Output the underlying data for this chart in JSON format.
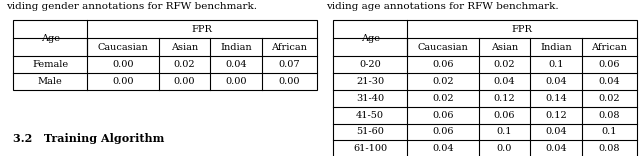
{
  "left_caption": "viding gender annotations for RFW benchmark.",
  "right_caption": "viding age annotations for RFW benchmark.",
  "left_table": {
    "rows": [
      [
        "Female",
        "0.00",
        "0.02",
        "0.04",
        "0.07"
      ],
      [
        "Male",
        "0.00",
        "0.00",
        "0.00",
        "0.00"
      ]
    ]
  },
  "right_table": {
    "rows": [
      [
        "0-20",
        "0.06",
        "0.02",
        "0.1",
        "0.06"
      ],
      [
        "21-30",
        "0.02",
        "0.04",
        "0.04",
        "0.04"
      ],
      [
        "31-40",
        "0.02",
        "0.12",
        "0.14",
        "0.02"
      ],
      [
        "41-50",
        "0.06",
        "0.06",
        "0.12",
        "0.08"
      ],
      [
        "51-60",
        "0.06",
        "0.1",
        "0.04",
        "0.1"
      ],
      [
        "61-100",
        "0.04",
        "0.0",
        "0.04",
        "0.08"
      ]
    ]
  },
  "sub_headers": [
    "Caucasian",
    "Asian",
    "Indian",
    "African"
  ],
  "font_size": 7.0,
  "caption_font_size": 7.5,
  "footer_text": "3.2   Training Algorithm",
  "footer_font_size": 8.0
}
